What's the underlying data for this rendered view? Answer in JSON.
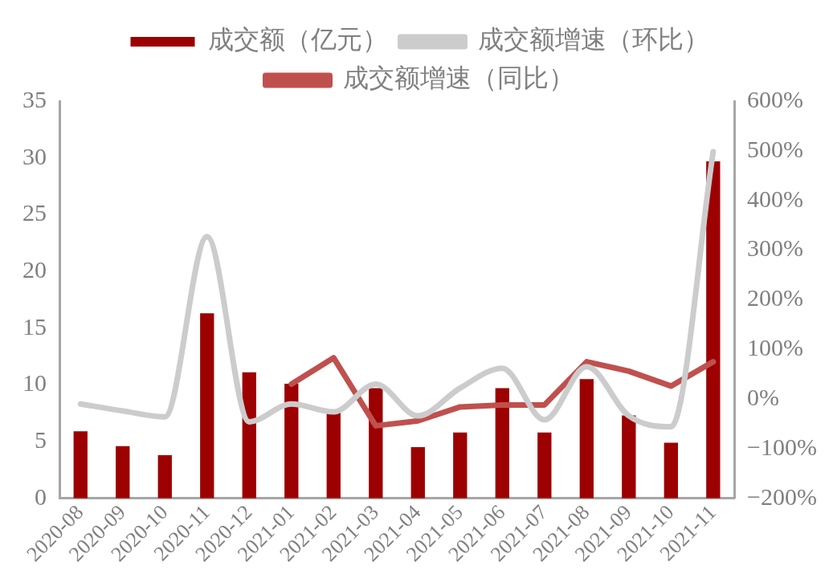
{
  "chart_data": {
    "type": "bar",
    "categories": [
      "2020-08",
      "2020-09",
      "2020-10",
      "2020-11",
      "2020-12",
      "2021-01",
      "2021-02",
      "2021-03",
      "2021-04",
      "2021-05",
      "2021-06",
      "2021-07",
      "2021-08",
      "2021-09",
      "2021-10",
      "2021-11"
    ],
    "series": [
      {
        "name": "成交额（亿元）",
        "color": "#9c0000",
        "values": [
          5.9,
          4.6,
          3.8,
          16.3,
          11.1,
          10.1,
          7.6,
          9.7,
          4.5,
          5.8,
          9.7,
          5.8,
          10.5,
          7.3,
          4.9,
          29.7
        ]
      },
      {
        "name": "成交额增速（环比）",
        "type": "line",
        "axis": "y2",
        "color": "#cccccc",
        "values": [
          -10,
          -24,
          -36,
          327,
          -46,
          -10,
          -26,
          30,
          -34,
          22,
          62,
          -42,
          65,
          -34,
          -56,
          498
        ]
      },
      {
        "name": "成交额增速（同比）",
        "type": "line",
        "axis": "y2",
        "color": "#c0504d",
        "values": [
          null,
          null,
          null,
          null,
          null,
          30,
          83,
          -54,
          -44,
          -16,
          -12,
          -12,
          75,
          56,
          26,
          75
        ]
      }
    ],
    "ylim": [
      0,
      35
    ],
    "yticks": [
      0,
      5,
      10,
      15,
      20,
      25,
      30,
      35
    ],
    "y2lim": [
      -200,
      600
    ],
    "y2ticks": [
      {
        "value": -200,
        "label": "−200%"
      },
      {
        "value": -100,
        "label": "−100%"
      },
      {
        "value": 0,
        "label": "0%"
      },
      {
        "value": 100,
        "label": "100%"
      },
      {
        "value": 200,
        "label": "200%"
      },
      {
        "value": 300,
        "label": "300%"
      },
      {
        "value": 400,
        "label": "400%"
      },
      {
        "value": 500,
        "label": "500%"
      },
      {
        "value": 600,
        "label": "600%"
      }
    ],
    "grid": false,
    "legend": "top",
    "marker": "none",
    "line_style": "solid"
  }
}
